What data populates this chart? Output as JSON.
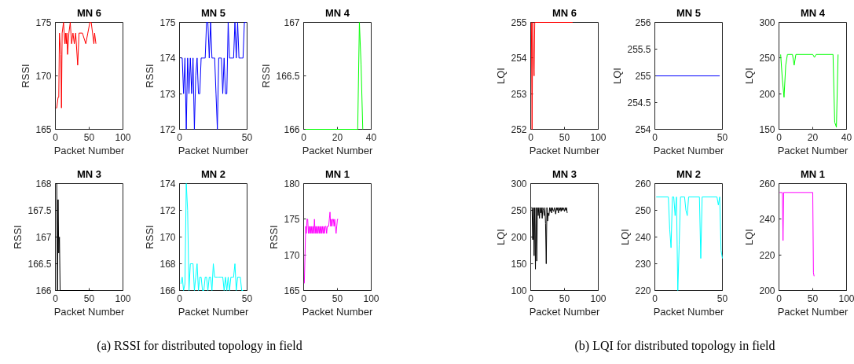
{
  "chart_data": [
    {
      "type": "line",
      "title": "MN 6",
      "xlabel": "Packet Number",
      "ylabel": "RSSI",
      "xlim": [
        0,
        100
      ],
      "ylim": [
        165,
        175
      ],
      "xticks": [
        0,
        50,
        100
      ],
      "yticks": [
        165,
        170,
        175
      ],
      "series": [
        {
          "color": "#ff0000",
          "x": [
            1,
            2,
            4,
            5,
            6,
            8,
            9,
            10,
            12,
            14,
            15,
            16,
            17,
            18,
            20,
            22,
            24,
            26,
            28,
            30,
            33,
            35,
            40,
            45,
            48,
            51,
            53,
            55,
            57,
            58,
            60
          ],
          "values": [
            167,
            167,
            168,
            168,
            174,
            172,
            167,
            174,
            175,
            173,
            174,
            173,
            174,
            172,
            174,
            175,
            173,
            174,
            173,
            174,
            171,
            174,
            174,
            173,
            174,
            175,
            175,
            174,
            173,
            174,
            173
          ]
        }
      ]
    },
    {
      "type": "line",
      "title": "MN 5",
      "xlabel": "Packet Number",
      "ylabel": "RSSI",
      "xlim": [
        0,
        50
      ],
      "ylim": [
        172,
        175
      ],
      "xticks": [
        0,
        50
      ],
      "yticks": [
        172,
        173,
        174,
        175
      ],
      "series": [
        {
          "color": "#0000ff",
          "x": [
            1,
            2,
            3,
            4,
            5,
            6,
            7,
            8,
            9,
            10,
            11,
            12,
            13,
            14,
            15,
            16,
            17,
            18,
            19,
            20,
            21,
            22,
            23,
            24,
            25,
            26,
            27,
            28,
            29,
            30,
            31,
            32,
            33,
            34,
            35,
            36,
            37,
            38,
            39,
            40,
            41,
            42,
            43,
            44,
            45,
            46,
            47,
            48,
            49
          ],
          "values": [
            174,
            174,
            173,
            174,
            172,
            174,
            173,
            174,
            173,
            174,
            172,
            173.5,
            174,
            173,
            173,
            174,
            174,
            174,
            174,
            175,
            175,
            174,
            175,
            174,
            174,
            174,
            173,
            172,
            174,
            174,
            174,
            173,
            174,
            173,
            173,
            175,
            174,
            174,
            174,
            174,
            175,
            174,
            175,
            174,
            174,
            174,
            174,
            175,
            175
          ]
        }
      ]
    },
    {
      "type": "line",
      "title": "MN 4",
      "xlabel": "Packet Number",
      "ylabel": "RSSI",
      "xlim": [
        0,
        40
      ],
      "ylim": [
        166,
        167
      ],
      "xticks": [
        0,
        20,
        40
      ],
      "yticks": [
        166,
        166.5,
        167
      ],
      "series": [
        {
          "color": "#00ff00",
          "x": [
            1,
            32,
            33,
            34,
            35
          ],
          "values": [
            166,
            166,
            167,
            166.6,
            166
          ]
        }
      ]
    },
    {
      "type": "line",
      "title": "MN 3",
      "xlabel": "Packet Number",
      "ylabel": "RSSI",
      "xlim": [
        0,
        100
      ],
      "ylim": [
        166,
        168
      ],
      "xticks": [
        0,
        50,
        100
      ],
      "yticks": [
        166,
        166.5,
        167,
        167.5,
        168
      ],
      "series": [
        {
          "color": "#000000",
          "x": [
            1,
            2,
            3,
            4,
            5,
            6,
            7,
            56
          ],
          "values": [
            168,
            168,
            166,
            167.7,
            166.7,
            167,
            166,
            166
          ]
        }
      ]
    },
    {
      "type": "line",
      "title": "MN 2",
      "xlabel": "Packet Number",
      "ylabel": "RSSI",
      "xlim": [
        0,
        50
      ],
      "ylim": [
        166,
        174
      ],
      "xticks": [
        0,
        50
      ],
      "yticks": [
        166,
        168,
        170,
        172,
        174
      ],
      "annotations": [
        "(a)  RSSI for distributed topology in field"
      ],
      "series": [
        {
          "color": "#00ffff",
          "x": [
            1,
            2,
            3,
            4,
            5,
            6,
            7,
            8,
            9,
            10,
            11,
            12,
            13,
            14,
            15,
            16,
            17,
            18,
            19,
            20,
            21,
            22,
            23,
            24,
            25,
            26,
            27,
            28,
            29,
            30,
            31,
            32,
            33,
            34,
            35,
            36,
            37,
            38,
            39,
            40,
            41,
            42,
            43,
            44,
            45,
            46,
            47
          ],
          "values": [
            166.5,
            167,
            166,
            166.5,
            174,
            172,
            166,
            168,
            168,
            168,
            166,
            167,
            168,
            166,
            167,
            167,
            166,
            166,
            167,
            167,
            166,
            167,
            167,
            166,
            168,
            167,
            167,
            167,
            167,
            167,
            167,
            167,
            166,
            167,
            166,
            167,
            166,
            167,
            167,
            167,
            168,
            166,
            167,
            167,
            167,
            166,
            166
          ]
        }
      ]
    },
    {
      "type": "line",
      "title": "MN 1",
      "xlabel": "Packet Number",
      "ylabel": "RSSI",
      "xlim": [
        0,
        100
      ],
      "ylim": [
        165,
        180
      ],
      "xticks": [
        0,
        50,
        100
      ],
      "yticks": [
        165,
        170,
        175,
        180
      ],
      "series": [
        {
          "color": "#ff00ff",
          "x": [
            1,
            2,
            3,
            4,
            5,
            6,
            7,
            8,
            9,
            10,
            11,
            12,
            13,
            14,
            15,
            16,
            17,
            18,
            19,
            20,
            21,
            22,
            23,
            24,
            25,
            26,
            27,
            28,
            29,
            30,
            31,
            32,
            33,
            34,
            35,
            36,
            37,
            38,
            39,
            40,
            41,
            42,
            43,
            44,
            45,
            46,
            47,
            48,
            49,
            50,
            51
          ],
          "values": [
            166,
            170,
            174,
            173,
            175,
            175,
            173,
            174,
            173,
            174,
            173,
            174,
            173,
            174,
            173,
            175,
            173,
            174,
            173,
            174,
            173,
            174,
            173,
            174,
            173,
            174,
            173,
            174,
            173,
            174,
            173,
            174,
            174,
            173,
            174,
            174,
            174,
            175,
            176,
            174,
            175,
            174,
            175,
            175,
            174,
            175,
            174,
            173,
            174,
            175,
            175
          ]
        }
      ]
    },
    {
      "type": "line",
      "title": "MN 6",
      "xlabel": "Packet Number",
      "ylabel": "LQI",
      "xlim": [
        0,
        100
      ],
      "ylim": [
        252,
        255
      ],
      "xticks": [
        0,
        50,
        100
      ],
      "yticks": [
        252,
        253,
        254,
        255
      ],
      "series": [
        {
          "color": "#ff0000",
          "x": [
            1,
            2,
            3,
            4,
            5,
            6,
            62
          ],
          "values": [
            255,
            252,
            255,
            254,
            253.5,
            255,
            255
          ]
        }
      ]
    },
    {
      "type": "line",
      "title": "MN 5",
      "xlabel": "Packet Number",
      "ylabel": "LQI",
      "xlim": [
        0,
        50
      ],
      "ylim": [
        254,
        256
      ],
      "xticks": [
        0,
        50
      ],
      "yticks": [
        254,
        254.5,
        255,
        255.5,
        256
      ],
      "series": [
        {
          "color": "#0000ff",
          "x": [
            1,
            48
          ],
          "values": [
            255,
            255
          ]
        }
      ]
    },
    {
      "type": "line",
      "title": "MN 4",
      "xlabel": "Packet Number",
      "ylabel": "LQI",
      "xlim": [
        0,
        40
      ],
      "ylim": [
        150,
        300
      ],
      "xticks": [
        0,
        20,
        40
      ],
      "yticks": [
        150,
        200,
        250,
        300
      ],
      "series": [
        {
          "color": "#00ff00",
          "x": [
            1,
            2,
            3,
            4,
            5,
            8,
            9,
            10,
            20,
            21,
            22,
            32,
            33,
            34,
            35
          ],
          "values": [
            255,
            220,
            195,
            240,
            255,
            255,
            240,
            255,
            255,
            251,
            255,
            255,
            160,
            153,
            255
          ]
        }
      ]
    },
    {
      "type": "line",
      "title": "MN 3",
      "xlabel": "Packet Number",
      "ylabel": "LQI",
      "xlim": [
        0,
        100
      ],
      "ylim": [
        100,
        300
      ],
      "xticks": [
        0,
        50,
        100
      ],
      "yticks": [
        100,
        150,
        200,
        250,
        300
      ],
      "series": [
        {
          "color": "#000000",
          "x": [
            1,
            2,
            3,
            4,
            5,
            6,
            7,
            8,
            9,
            10,
            11,
            12,
            13,
            14,
            15,
            16,
            17,
            18,
            19,
            20,
            21,
            22,
            23,
            24,
            25,
            26,
            27,
            28,
            29,
            30,
            31,
            32,
            33,
            34,
            35,
            36,
            37,
            38,
            39,
            40,
            41,
            42,
            43,
            44,
            45,
            46,
            47,
            48,
            49,
            50,
            51,
            52,
            53,
            54
          ],
          "values": [
            255,
            255,
            195,
            255,
            165,
            255,
            140,
            255,
            155,
            255,
            240,
            255,
            235,
            255,
            245,
            255,
            235,
            255,
            250,
            240,
            255,
            225,
            150,
            255,
            230,
            245,
            240,
            255,
            248,
            255,
            245,
            255,
            250,
            248,
            255,
            250,
            243,
            255,
            250,
            255,
            245,
            255,
            250,
            255,
            248,
            255,
            250,
            255,
            252,
            248,
            255,
            250,
            255,
            245
          ]
        }
      ]
    },
    {
      "type": "line",
      "title": "MN 2",
      "xlabel": "Packet Number",
      "ylabel": "LQI",
      "xlim": [
        0,
        50
      ],
      "ylim": [
        220,
        260
      ],
      "xticks": [
        0,
        50
      ],
      "yticks": [
        220,
        230,
        240,
        250,
        260
      ],
      "annotations": [
        "(b)  LQI for distributed topology in field"
      ],
      "series": [
        {
          "color": "#00ffff",
          "x": [
            1,
            10,
            11,
            12,
            13,
            14,
            15,
            16,
            17,
            18,
            19,
            22,
            23,
            24,
            25,
            33,
            34,
            35,
            46,
            47,
            48,
            49,
            50
          ],
          "values": [
            255,
            255,
            243,
            236,
            255,
            255,
            248,
            255,
            220,
            237,
            255,
            255,
            250,
            248,
            255,
            255,
            232,
            255,
            255,
            252,
            255,
            235,
            232
          ]
        }
      ]
    },
    {
      "type": "line",
      "title": "MN 1",
      "xlabel": "Packet Number",
      "ylabel": "LQI",
      "xlim": [
        0,
        100
      ],
      "ylim": [
        200,
        260
      ],
      "xticks": [
        0,
        50,
        100
      ],
      "yticks": [
        200,
        220,
        240,
        260
      ],
      "series": [
        {
          "color": "#ff00ff",
          "x": [
            1,
            5,
            6,
            7,
            50,
            51,
            52
          ],
          "values": [
            255,
            255,
            228,
            255,
            255,
            210,
            208
          ]
        }
      ]
    }
  ]
}
